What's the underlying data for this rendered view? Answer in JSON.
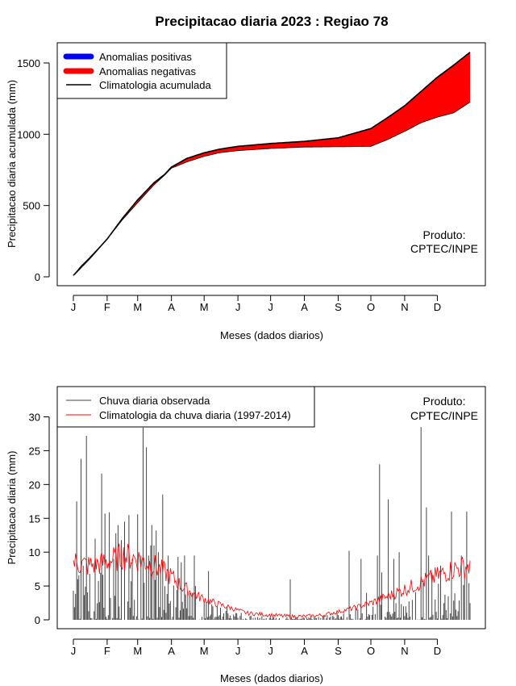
{
  "title": "Precipitacao diaria 2023 : Regiao 78",
  "chart_data": [
    {
      "type": "area",
      "ylabel": "Precipitacao diaria acumulada (mm)",
      "xlabel": "Meses (dados diarios)",
      "xlim": [
        1,
        365
      ],
      "ylim": [
        0,
        1600
      ],
      "yticks": [
        0,
        500,
        1000,
        1500
      ],
      "month_labels": [
        "J",
        "F",
        "M",
        "A",
        "M",
        "J",
        "J",
        "A",
        "S",
        "O",
        "N",
        "D"
      ],
      "month_days": [
        1,
        32,
        60,
        91,
        121,
        152,
        182,
        213,
        244,
        274,
        305,
        335
      ],
      "legend": [
        {
          "label": "Anomalias positivas",
          "color": "#0000ff"
        },
        {
          "label": "Anomalias negativas",
          "color": "#ff0000"
        },
        {
          "label": "Climatologia acumulada",
          "color": "#000000"
        }
      ],
      "annotation": [
        "Produto:",
        "CPTEC/INPE"
      ],
      "climatology": {
        "days": [
          1,
          15,
          32,
          46,
          60,
          75,
          85,
          91,
          105,
          121,
          135,
          152,
          182,
          213,
          244,
          274,
          290,
          305,
          320,
          335,
          350,
          365
        ],
        "values": [
          10,
          120,
          265,
          410,
          540,
          660,
          720,
          770,
          830,
          870,
          895,
          915,
          935,
          950,
          975,
          1040,
          1120,
          1200,
          1300,
          1400,
          1485,
          1575
        ]
      },
      "observed": {
        "days": [
          1,
          8,
          15,
          32,
          46,
          60,
          75,
          85,
          91,
          105,
          121,
          135,
          152,
          182,
          213,
          244,
          274,
          290,
          305,
          320,
          335,
          350,
          365
        ],
        "values": [
          10,
          75,
          128,
          265,
          400,
          520,
          645,
          715,
          762,
          805,
          845,
          870,
          885,
          900,
          910,
          912,
          915,
          965,
          1020,
          1080,
          1120,
          1150,
          1225
        ]
      }
    },
    {
      "type": "bar",
      "ylabel": "Precipitacao diaria (mm)",
      "xlabel": "Meses (dados diarios)",
      "xlim": [
        1,
        365
      ],
      "ylim": [
        0,
        30
      ],
      "yticks": [
        0,
        5,
        10,
        15,
        20,
        25,
        30
      ],
      "month_labels": [
        "J",
        "F",
        "M",
        "A",
        "M",
        "J",
        "J",
        "A",
        "S",
        "O",
        "N",
        "D"
      ],
      "month_days": [
        1,
        32,
        60,
        91,
        121,
        152,
        182,
        213,
        244,
        274,
        305,
        335
      ],
      "legend": [
        {
          "label": "Chuva diaria observada",
          "color": "#444444"
        },
        {
          "label": "Climatologia da chuva diaria (1997-2014)",
          "color": "#ff0000"
        }
      ],
      "annotation": [
        "Produto:",
        "CPTEC/INPE"
      ],
      "climatology_knots": {
        "days": [
          1,
          15,
          32,
          46,
          60,
          75,
          90,
          100,
          115,
          130,
          145,
          160,
          175,
          190,
          200,
          213,
          230,
          244,
          260,
          274,
          290,
          305,
          320,
          335,
          350,
          365
        ],
        "values": [
          8.5,
          8.0,
          8.5,
          9.5,
          9.0,
          8.0,
          6.5,
          5.0,
          3.5,
          2.5,
          1.8,
          1.0,
          0.8,
          0.6,
          0.5,
          0.5,
          0.7,
          1.2,
          1.8,
          2.5,
          3.5,
          4.5,
          5.5,
          6.5,
          7.5,
          8.0
        ]
      },
      "observed_peaks": {
        "days": [
          4,
          5,
          8,
          10,
          13,
          21,
          27,
          30,
          34,
          38,
          40,
          42,
          45,
          48,
          52,
          55,
          60,
          63,
          65,
          68,
          70,
          72,
          73,
          75,
          77,
          79,
          81,
          83,
          88,
          97,
          100,
          103,
          108,
          110,
          112,
          113,
          125,
          129,
          142,
          150,
          155,
          200,
          244,
          254,
          260,
          265,
          270,
          280,
          282,
          284,
          290,
          295,
          300,
          306,
          320,
          322,
          325,
          327,
          330,
          333,
          338,
          345,
          348,
          352,
          357,
          362
        ],
        "values": [
          17.5,
          6,
          23.8,
          8,
          27.2,
          12,
          21.6,
          15.7,
          15.9,
          9,
          12.8,
          14,
          11.8,
          14.5,
          15.5,
          9,
          15.6,
          9.5,
          28.4,
          25.5,
          9.5,
          11,
          14,
          11,
          13.2,
          10,
          7,
          18.5,
          9.5,
          9.3,
          8.5,
          9.5,
          4,
          4,
          9.5,
          5,
          7.2,
          2,
          2,
          1,
          1,
          6,
          0.7,
          10.2,
          2,
          9,
          4,
          9.5,
          23.0,
          7,
          17.8,
          9,
          10,
          2,
          28.5,
          6,
          16.6,
          9.5,
          7,
          3,
          8,
          3.5,
          16.0,
          1.5,
          9.5,
          16.0
        ]
      }
    }
  ]
}
